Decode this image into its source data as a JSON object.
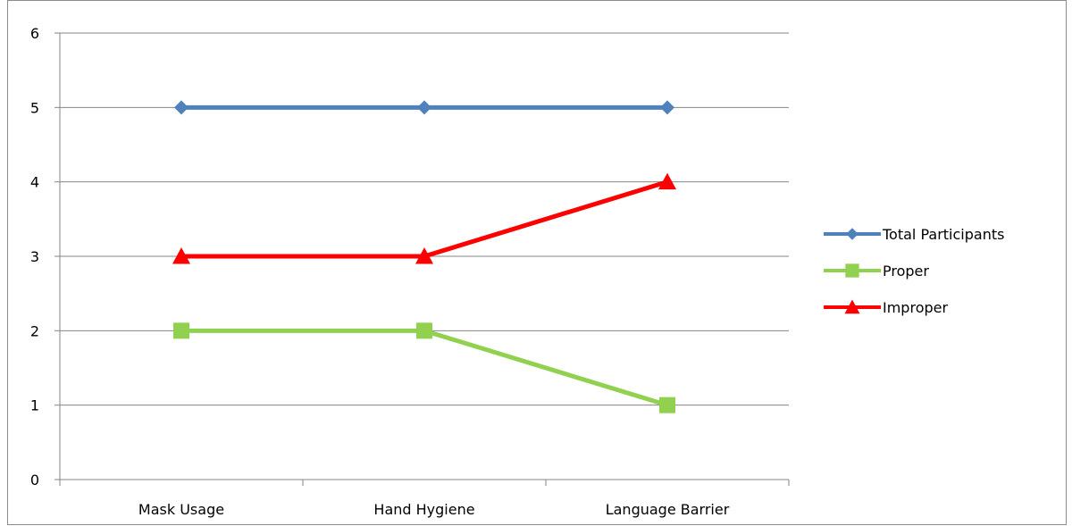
{
  "chart_data": {
    "type": "line",
    "title": "",
    "xlabel": "",
    "ylabel": "",
    "categories": [
      "Mask Usage",
      "Hand Hygiene",
      "Language Barrier"
    ],
    "ylim": [
      0,
      6
    ],
    "yticks": [
      "0",
      "1",
      "2",
      "3",
      "4",
      "5",
      "6"
    ],
    "grid": "horizontal",
    "legend_position": "right",
    "series": [
      {
        "name": "Total Participants",
        "values": [
          5,
          5,
          5
        ],
        "color": "#4f81bd",
        "marker": "diamond"
      },
      {
        "name": "Proper",
        "values": [
          2,
          2,
          1
        ],
        "color": "#92d050",
        "marker": "square"
      },
      {
        "name": "Improper",
        "values": [
          3,
          3,
          4
        ],
        "color": "#ff0000",
        "marker": "triangle"
      }
    ]
  }
}
